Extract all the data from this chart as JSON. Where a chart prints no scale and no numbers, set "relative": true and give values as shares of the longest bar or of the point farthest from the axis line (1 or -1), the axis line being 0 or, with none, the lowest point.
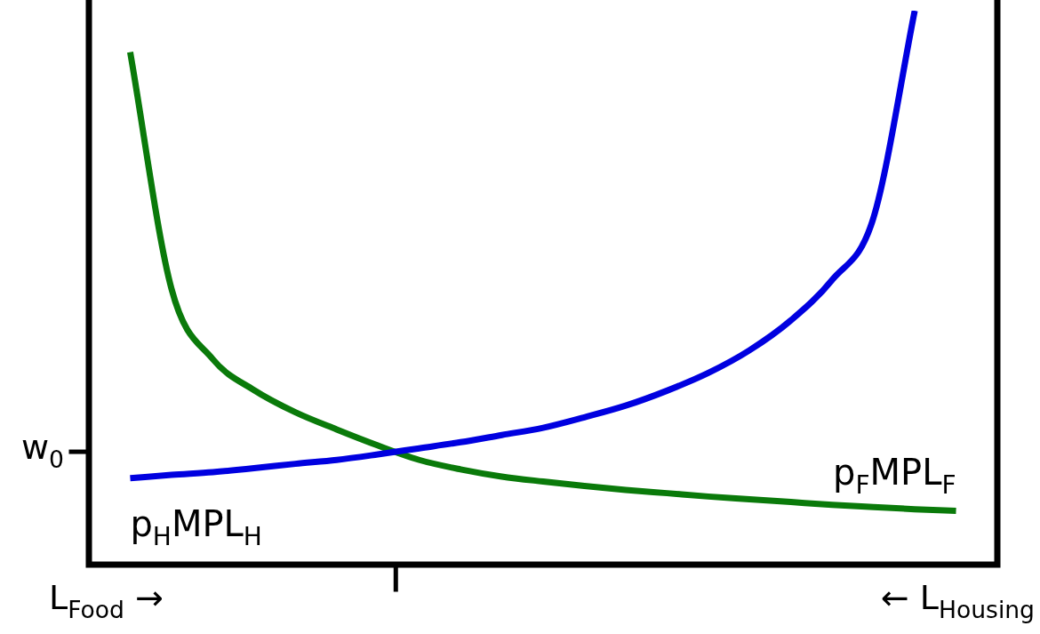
{
  "chart_data": {
    "type": "line",
    "relative": true,
    "marker": "none",
    "categories": [
      null,
      null,
      null,
      null,
      null,
      null,
      null,
      null,
      null,
      null,
      null,
      null,
      null,
      null,
      null,
      null,
      null,
      null,
      null,
      null,
      null,
      null,
      null
    ],
    "series": [
      {
        "name": "p$_{H}$MPL$_{H}$",
        "color": "#0000e0",
        "values": [
          null,
          0.156,
          0.162,
          0.167,
          0.174,
          0.182,
          0.189,
          0.199,
          0.21,
          0.221,
          0.234,
          0.247,
          0.266,
          0.287,
          0.314,
          0.346,
          0.387,
          0.441,
          0.514,
          0.626,
          1.0,
          null,
          null
        ]
      },
      {
        "name": "p$_{F}$MPL$_{F}$",
        "color": "#0a7a0a",
        "values": [
          null,
          0.925,
          0.498,
          0.371,
          0.315,
          0.275,
          0.244,
          0.215,
          0.189,
          0.172,
          0.159,
          0.15,
          0.142,
          0.135,
          0.129,
          0.123,
          0.118,
          0.113,
          0.108,
          0.104,
          0.1,
          0.097,
          null
        ]
      }
    ],
    "annotations": [
      "w$_{0}$",
      "L$_{Food}$ →",
      "← L$_{Housing}$"
    ]
  }
}
